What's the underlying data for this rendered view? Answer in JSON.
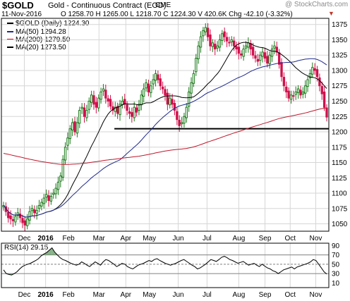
{
  "header": {
    "symbol": "$GOLD",
    "description": "Gold - Continuous Contract (EOD)",
    "exchange": "CME",
    "date": "11-Nov-2016",
    "quote": "O 1258.70  H 1265.00  L 1218.70  C 1224.30  V 420.6K  Chg -42.10 (-3.32%)",
    "change_arrow": "▼",
    "watermark": "@ StockCharts.com"
  },
  "legend": {
    "price": "$GOLD (Daily) 1224.30",
    "ma50": "MA(50) 1294.28",
    "ma200": "MA(200) 1279.50",
    "ma20": "MA(20) 1273.50"
  },
  "rsi_label": "RSI(14) 29.15",
  "colors": {
    "up": "#1a7a1a",
    "down": "#d0104c",
    "ma50": "#1f2a8c",
    "ma200": "#c0182c",
    "ma20": "#000000",
    "grid": "#d6d6d6",
    "rsi_fill": "#6a9f6a"
  },
  "chart_data": [
    {
      "type": "candlestick",
      "title": "$GOLD (Daily) 1224.30",
      "x_labels": [
        "Dec",
        "2016",
        "Feb",
        "Mar",
        "Apr",
        "May",
        "Jun",
        "Jul",
        "Aug",
        "Sep",
        "Oct",
        "Nov"
      ],
      "y_ticks": [
        1050,
        1075,
        1100,
        1125,
        1150,
        1175,
        1200,
        1225,
        1250,
        1275,
        1300,
        1325,
        1350,
        1375
      ],
      "ylim": [
        1038,
        1385
      ],
      "support_line": 1205,
      "price_path": [
        1080,
        1070,
        1060,
        1058,
        1055,
        1062,
        1068,
        1060,
        1052,
        1048,
        1058,
        1070,
        1075,
        1068,
        1072,
        1080,
        1085,
        1092,
        1098,
        1088,
        1095,
        1100,
        1108,
        1118,
        1128,
        1155,
        1175,
        1190,
        1205,
        1215,
        1200,
        1215,
        1235,
        1240,
        1225,
        1235,
        1250,
        1260,
        1245,
        1240,
        1255,
        1265,
        1270,
        1255,
        1250,
        1242,
        1235,
        1240,
        1230,
        1245,
        1250,
        1245,
        1235,
        1230,
        1225,
        1240,
        1232,
        1245,
        1260,
        1270,
        1280,
        1265,
        1275,
        1285,
        1295,
        1285,
        1275,
        1270,
        1260,
        1245,
        1255,
        1245,
        1235,
        1220,
        1210,
        1215,
        1225,
        1240,
        1265,
        1280,
        1295,
        1320,
        1340,
        1355,
        1365,
        1370,
        1355,
        1340,
        1345,
        1335,
        1340,
        1350,
        1360,
        1355,
        1348,
        1345,
        1350,
        1340,
        1335,
        1328,
        1325,
        1335,
        1340,
        1345,
        1335,
        1325,
        1320,
        1315,
        1325,
        1330,
        1320,
        1312,
        1325,
        1335,
        1340,
        1330,
        1310,
        1290,
        1275,
        1265,
        1255,
        1260,
        1258,
        1265,
        1270,
        1260,
        1265,
        1275,
        1285,
        1295,
        1305,
        1300,
        1290,
        1275,
        1262,
        1240,
        1224
      ]
    },
    {
      "type": "line",
      "title": "RSI(14) 29.15",
      "x_labels": [
        "Dec",
        "2016",
        "Feb",
        "Mar",
        "Apr",
        "May",
        "Jun",
        "Jul",
        "Aug",
        "Sep",
        "Oct",
        "Nov"
      ],
      "y_ticks": [
        10,
        30,
        50,
        70,
        90
      ],
      "ylim": [
        0,
        95
      ],
      "levels": [
        30,
        50,
        70
      ],
      "rsi_path": [
        38,
        30,
        28,
        27,
        30,
        34,
        40,
        45,
        48,
        50,
        52,
        55,
        58,
        62,
        68,
        72,
        75,
        80,
        85,
        76,
        70,
        64,
        60,
        58,
        55,
        52,
        50,
        48,
        50,
        55,
        52,
        48,
        45,
        50,
        55,
        52,
        48,
        55,
        60,
        58,
        54,
        50,
        45,
        48,
        52,
        50,
        45,
        42,
        40,
        44,
        48,
        50,
        52,
        55,
        58,
        56,
        60,
        62,
        58,
        55,
        52,
        50,
        48,
        50,
        52,
        55,
        58,
        60,
        56,
        52,
        48,
        45,
        40,
        42,
        46,
        50,
        55,
        60,
        58,
        56,
        60,
        65,
        67,
        64,
        60,
        58,
        55,
        52,
        54,
        56,
        52,
        48,
        50,
        52,
        48,
        45,
        50,
        46,
        42,
        40,
        36,
        34,
        30,
        34,
        38,
        40,
        42,
        44,
        40,
        44,
        46,
        48,
        50,
        52,
        55,
        60,
        58,
        50,
        42,
        34,
        29
      ]
    }
  ]
}
